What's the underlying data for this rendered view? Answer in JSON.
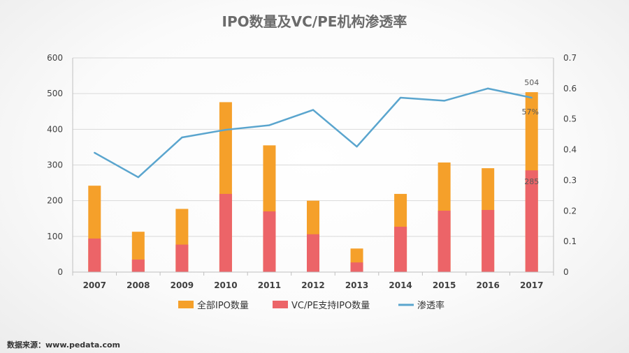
{
  "chart_data": {
    "type": "bar",
    "title": "IPO数量及VC/PE机构渗透率",
    "categories": [
      "2007",
      "2008",
      "2009",
      "2010",
      "2011",
      "2012",
      "2013",
      "2014",
      "2015",
      "2016",
      "2017"
    ],
    "series": [
      {
        "name": "全部IPO数量",
        "kind": "bar",
        "axis": "left",
        "color": "#F5A02A",
        "values": [
          242,
          113,
          177,
          476,
          355,
          200,
          66,
          219,
          307,
          291,
          504
        ]
      },
      {
        "name": "VC/PE支持IPO数量",
        "kind": "bar",
        "axis": "left",
        "color": "#EC6468",
        "values": [
          94,
          35,
          77,
          219,
          170,
          106,
          27,
          127,
          172,
          174,
          285
        ]
      },
      {
        "name": "渗透率",
        "kind": "line",
        "axis": "right",
        "color": "#5AA5CE",
        "values": [
          0.39,
          0.31,
          0.44,
          0.465,
          0.48,
          0.53,
          0.41,
          0.57,
          0.56,
          0.6,
          0.57
        ]
      }
    ],
    "ylim": [
      0,
      600
    ],
    "y2lim": [
      0,
      0.7
    ],
    "yticks": [
      "0",
      "100",
      "200",
      "300",
      "400",
      "500",
      "600"
    ],
    "y2ticks": [
      "0",
      "0.1",
      "0.2",
      "0.3",
      "0.4",
      "0.5",
      "0.6",
      "0.7"
    ],
    "annotations": {
      "total_2017": "504",
      "rate_2017": "57%",
      "vcpe_2017": "285"
    },
    "grid": true,
    "legend_position": "bottom"
  },
  "source_text": "数据来源：www.pedata.com"
}
